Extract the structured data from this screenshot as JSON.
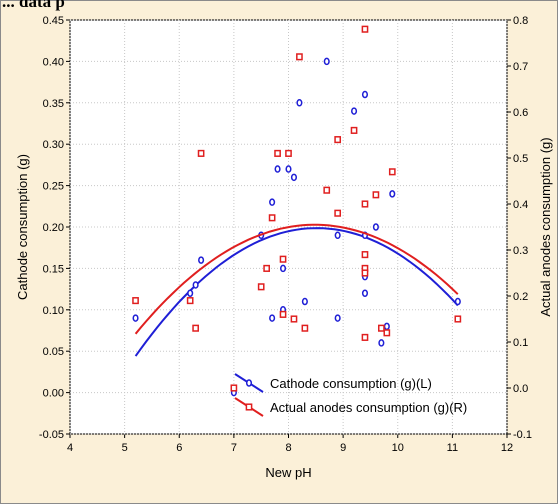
{
  "partial_title": "... data p",
  "colors": {
    "left_series": "#1f1fd6",
    "right_series": "#e01f1f",
    "background": "#fbf0d8"
  },
  "chart_data": {
    "type": "scatter",
    "title": "",
    "xlabel": "New pH",
    "ylabel_left": "Cathode consumption (g)",
    "ylabel_right": "Actual anodes consumption (g)",
    "xlim": [
      4,
      12
    ],
    "ylim_left": [
      -0.05,
      0.45
    ],
    "ylim_right": [
      -0.1,
      0.8
    ],
    "x_ticks": [
      "4",
      "5",
      "6",
      "7",
      "8",
      "9",
      "10",
      "11",
      "12"
    ],
    "y_left_ticks": [
      "-0.05",
      "0.00",
      "0.05",
      "0.10",
      "0.15",
      "0.20",
      "0.25",
      "0.30",
      "0.35",
      "0.40",
      "0.45"
    ],
    "y_right_ticks": [
      "-0.1",
      "0.0",
      "0.1",
      "0.2",
      "0.3",
      "0.4",
      "0.5",
      "0.6",
      "0.7",
      "0.8"
    ],
    "grid": true,
    "legend_position": "bottom-right",
    "series": [
      {
        "name": "Cathode consumption (g)(L)",
        "axis": "left",
        "marker": "circle",
        "points": [
          [
            5.2,
            0.09
          ],
          [
            6.2,
            0.12
          ],
          [
            6.3,
            0.13
          ],
          [
            6.4,
            0.16
          ],
          [
            7.0,
            0.0
          ],
          [
            7.5,
            0.19
          ],
          [
            7.7,
            0.09
          ],
          [
            7.7,
            0.23
          ],
          [
            7.8,
            0.27
          ],
          [
            7.9,
            0.15
          ],
          [
            7.9,
            0.1
          ],
          [
            8.0,
            0.27
          ],
          [
            8.1,
            0.26
          ],
          [
            8.2,
            0.35
          ],
          [
            8.3,
            0.11
          ],
          [
            8.7,
            0.4
          ],
          [
            8.9,
            0.19
          ],
          [
            8.9,
            0.09
          ],
          [
            9.2,
            0.34
          ],
          [
            9.4,
            0.36
          ],
          [
            9.4,
            0.19
          ],
          [
            9.4,
            0.12
          ],
          [
            9.4,
            0.14
          ],
          [
            9.6,
            0.2
          ],
          [
            9.7,
            0.06
          ],
          [
            9.8,
            0.08
          ],
          [
            9.9,
            0.24
          ],
          [
            11.1,
            0.11
          ]
        ],
        "fit": [
          [
            5.2,
            0.048
          ],
          [
            6.0,
            0.107
          ],
          [
            7.0,
            0.162
          ],
          [
            8.0,
            0.193
          ],
          [
            8.6,
            0.199
          ],
          [
            9.0,
            0.197
          ],
          [
            10.0,
            0.176
          ],
          [
            11.1,
            0.1
          ]
        ]
      },
      {
        "name": "Actual anodes consumption (g)(R)",
        "axis": "right",
        "marker": "square",
        "points": [
          [
            5.2,
            0.19
          ],
          [
            6.2,
            0.19
          ],
          [
            6.3,
            0.13
          ],
          [
            6.4,
            0.51
          ],
          [
            7.0,
            0.0
          ],
          [
            7.5,
            0.22
          ],
          [
            7.6,
            0.26
          ],
          [
            7.7,
            0.37
          ],
          [
            7.8,
            0.51
          ],
          [
            7.9,
            0.16
          ],
          [
            7.9,
            0.28
          ],
          [
            8.0,
            0.51
          ],
          [
            8.1,
            0.15
          ],
          [
            8.2,
            0.72
          ],
          [
            8.3,
            0.13
          ],
          [
            8.7,
            0.43
          ],
          [
            8.9,
            0.38
          ],
          [
            8.9,
            0.54
          ],
          [
            9.2,
            0.56
          ],
          [
            9.4,
            0.78
          ],
          [
            9.4,
            0.4
          ],
          [
            9.4,
            0.29
          ],
          [
            9.4,
            0.26
          ],
          [
            9.4,
            0.25
          ],
          [
            9.6,
            0.42
          ],
          [
            9.7,
            0.13
          ],
          [
            9.8,
            0.12
          ],
          [
            9.9,
            0.47
          ],
          [
            11.1,
            0.15
          ],
          [
            9.4,
            0.11
          ]
        ],
        "fit": [
          [
            5.2,
            0.12
          ],
          [
            6.0,
            0.22
          ],
          [
            7.0,
            0.3
          ],
          [
            8.0,
            0.35
          ],
          [
            8.6,
            0.355
          ],
          [
            9.0,
            0.35
          ],
          [
            10.0,
            0.31
          ],
          [
            11.1,
            0.2
          ]
        ]
      }
    ]
  }
}
